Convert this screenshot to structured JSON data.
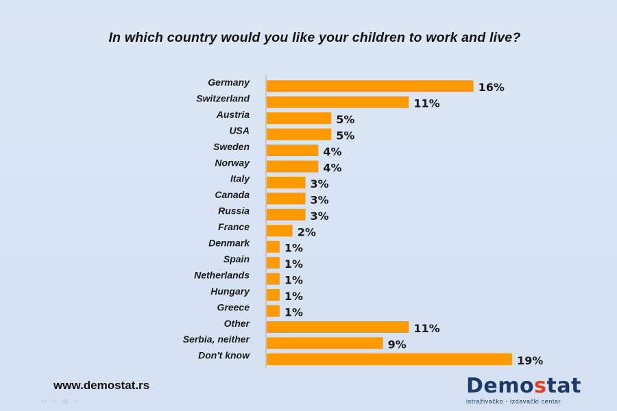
{
  "chart_data": {
    "type": "bar",
    "orientation": "horizontal",
    "title": "In which country would you like your children to work and live?",
    "categories": [
      "Germany",
      "Switzerland",
      "Austria",
      "USA",
      "Sweden",
      "Norway",
      "Italy",
      "Canada",
      "Russia",
      "France",
      "Denmark",
      "Spain",
      "Netherlands",
      "Hungary",
      "Greece",
      "Other",
      "Serbia, neither",
      "Don't know"
    ],
    "values": [
      16,
      11,
      5,
      5,
      4,
      4,
      3,
      3,
      3,
      2,
      1,
      1,
      1,
      1,
      1,
      11,
      9,
      19
    ],
    "data_labels": [
      "16%",
      "11%",
      "5%",
      "5%",
      "4%",
      "4%",
      "3%",
      "3%",
      "3%",
      "2%",
      "1%",
      "1%",
      "1%",
      "1%",
      "1%",
      "11%",
      "9%",
      "19%"
    ],
    "value_unit": "%",
    "xlim": [
      0,
      19
    ],
    "grid": false,
    "legend": "none",
    "bar_color": "#ff9900"
  },
  "footer": {
    "website": "www.demostat.rs",
    "logo_prefix": "Demo",
    "logo_accent": "s",
    "logo_suffix": "tat",
    "logo_tagline": "istraživačko - izdavački  centar"
  },
  "colors": {
    "background": "#d8e4f4",
    "bar": "#ff9900",
    "logo_blue": "#1d3a66",
    "logo_red": "#e53a1e"
  }
}
